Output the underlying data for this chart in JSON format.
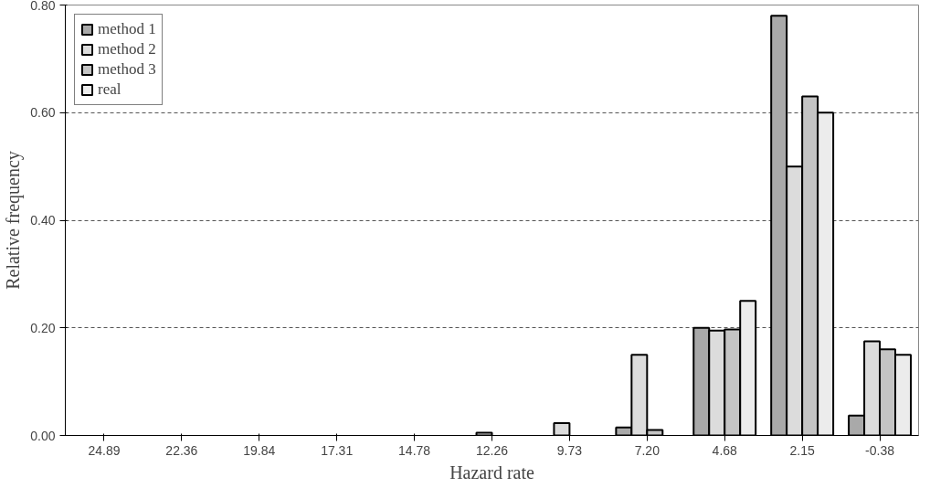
{
  "chart_data": {
    "type": "bar",
    "xlabel": "Hazard rate",
    "ylabel": "Relative frequency",
    "categories": [
      "24.89",
      "22.36",
      "19.84",
      "17.31",
      "14.78",
      "12.26",
      "9.73",
      "7.20",
      "4.68",
      "2.15",
      "-0.38"
    ],
    "series": [
      {
        "name": "method 1",
        "color": "#a9a9a9",
        "values": [
          null,
          null,
          null,
          null,
          null,
          null,
          null,
          0.015,
          0.2,
          0.78,
          0.037
        ]
      },
      {
        "name": "method 2",
        "color": "#dcdcdc",
        "values": [
          null,
          null,
          null,
          null,
          null,
          0.005,
          0.023,
          0.15,
          0.195,
          0.5,
          0.175
        ]
      },
      {
        "name": "method 3",
        "color": "#c4c4c4",
        "values": [
          null,
          null,
          null,
          null,
          null,
          null,
          null,
          0.01,
          0.197,
          0.63,
          0.16
        ]
      },
      {
        "name": "real",
        "color": "#ececec",
        "values": [
          null,
          null,
          null,
          null,
          null,
          null,
          null,
          null,
          0.25,
          0.6,
          0.15
        ]
      }
    ],
    "ylim": [
      0,
      0.8
    ],
    "yticks": [
      {
        "value": 0,
        "label": "0.00"
      },
      {
        "value": 0.2,
        "label": "0.20"
      },
      {
        "value": 0.4,
        "label": "0.40"
      },
      {
        "value": 0.6,
        "label": "0.60"
      },
      {
        "value": 0.8,
        "label": "0.80"
      }
    ],
    "grid": "y",
    "legend": "top left"
  }
}
